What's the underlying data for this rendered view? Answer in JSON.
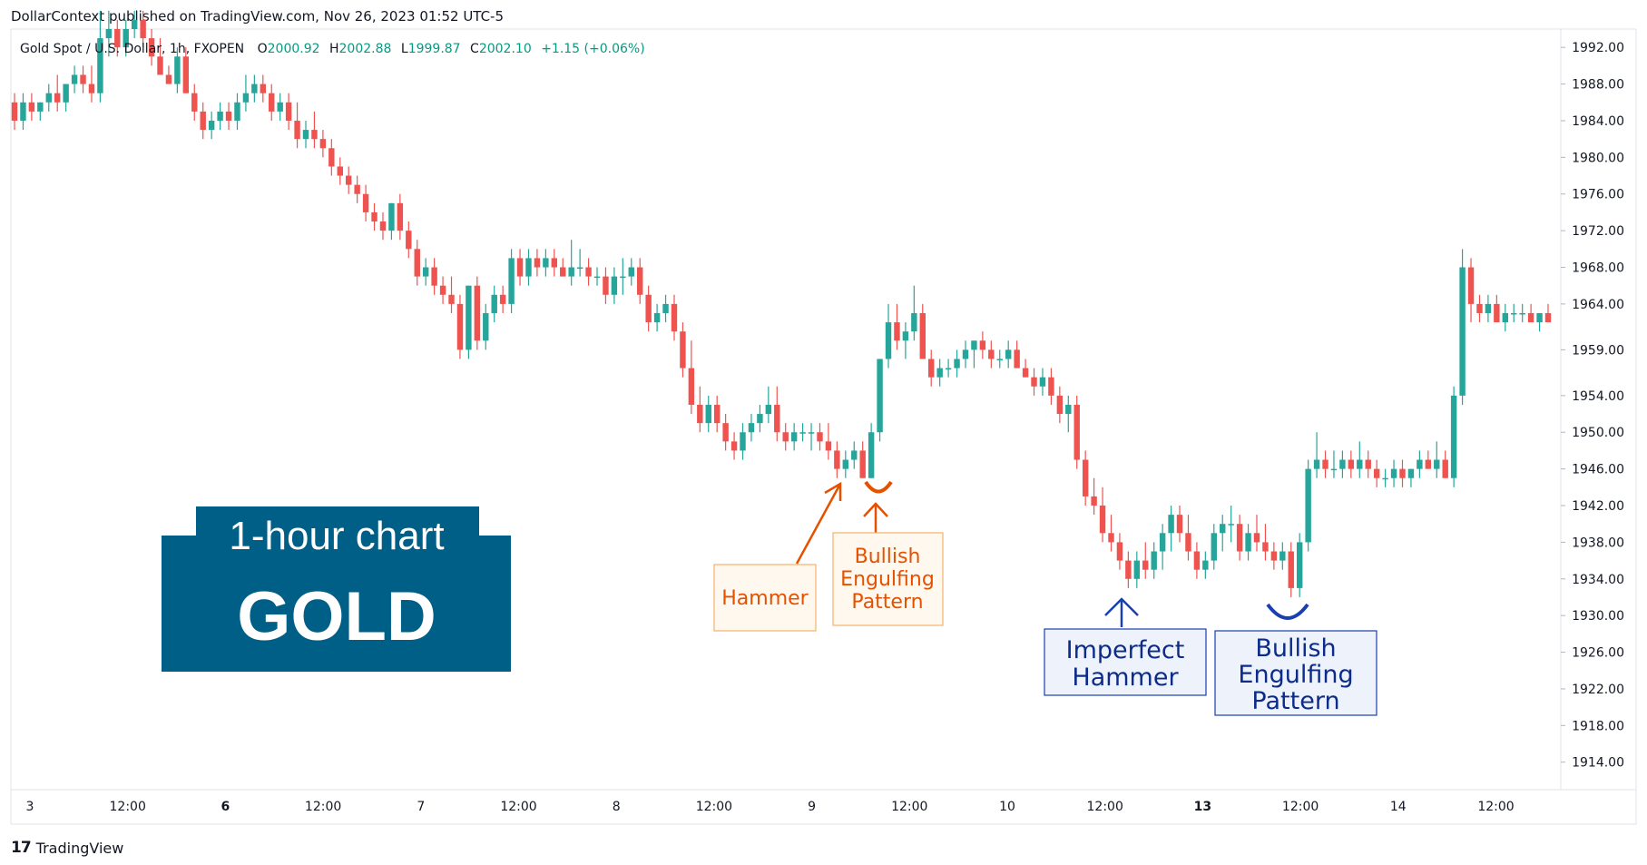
{
  "header": {
    "publisher": "DollarContext published on TradingView.com, Nov 26, 2023 01:52 UTC-5"
  },
  "legend": {
    "symbol": "Gold Spot / U.S. Dollar, 1h, FXOPEN",
    "o_label": "O",
    "o": "2000.92",
    "h_label": "H",
    "h": "2002.88",
    "l_label": "L",
    "l": "1999.87",
    "c_label": "C",
    "c": "2002.10",
    "change": "+1.15 (+0.06%)"
  },
  "badge": {
    "line1": "1-hour chart",
    "line2": "GOLD"
  },
  "footer": {
    "brand": "TradingView",
    "brand_mark": "17"
  },
  "colors": {
    "up": "#26a69a",
    "down": "#ef5350",
    "orange": "#e65100",
    "blue": "#0d47a1"
  },
  "annotations": {
    "hammer": "Hammer",
    "bull1": [
      "Bullish",
      "Engulfing",
      "Pattern"
    ],
    "imperfect": [
      "Imperfect",
      "Hammer"
    ],
    "bull2": [
      "Bullish",
      "Engulfing",
      "Pattern"
    ]
  },
  "chart_data": {
    "type": "candlestick",
    "title": "Gold Spot / U.S. Dollar, 1h, FXOPEN",
    "ylim": [
      1911,
      1994
    ],
    "y_ticks": [
      "1992.00",
      "1988.00",
      "1984.00",
      "1980.00",
      "1976.00",
      "1972.00",
      "1968.00",
      "1964.00",
      "1959.00",
      "1954.00",
      "1950.00",
      "1946.00",
      "1942.00",
      "1938.00",
      "1934.00",
      "1930.00",
      "1926.00",
      "1922.00",
      "1918.00",
      "1914.00"
    ],
    "x_ticks": [
      "3",
      "12:00",
      "6",
      "12:00",
      "7",
      "12:00",
      "8",
      "12:00",
      "9",
      "12:00",
      "10",
      "12:00",
      "13",
      "12:00",
      "14",
      "12:00"
    ],
    "x_ticks_bold": [
      false,
      false,
      true,
      false,
      false,
      false,
      false,
      false,
      false,
      false,
      false,
      false,
      true,
      false,
      false,
      false
    ],
    "candles": [
      [
        1986,
        1987,
        1983,
        1984
      ],
      [
        1984,
        1987,
        1983,
        1986
      ],
      [
        1986,
        1987,
        1984,
        1985
      ],
      [
        1985,
        1986,
        1984,
        1986
      ],
      [
        1986,
        1988,
        1985,
        1987
      ],
      [
        1987,
        1989,
        1985,
        1986
      ],
      [
        1986,
        1988,
        1985,
        1988
      ],
      [
        1988,
        1990,
        1987,
        1989
      ],
      [
        1989,
        1990,
        1987,
        1988
      ],
      [
        1988,
        1990,
        1986,
        1987
      ],
      [
        1987,
        1996,
        1986,
        1993
      ],
      [
        1993,
        1996,
        1991,
        1994
      ],
      [
        1994,
        1995,
        1991,
        1992
      ],
      [
        1992,
        1995,
        1991,
        1994
      ],
      [
        1994,
        1996,
        1993,
        1995
      ],
      [
        1995,
        1996,
        1992,
        1993
      ],
      [
        1993,
        1994,
        1990,
        1991
      ],
      [
        1991,
        1993,
        1989,
        1989
      ],
      [
        1989,
        1990,
        1988,
        1988
      ],
      [
        1988,
        1992,
        1987,
        1991
      ],
      [
        1991,
        1992,
        1987,
        1987
      ],
      [
        1987,
        1988,
        1984,
        1985
      ],
      [
        1985,
        1986,
        1982,
        1983
      ],
      [
        1983,
        1985,
        1982,
        1984
      ],
      [
        1984,
        1986,
        1983,
        1985
      ],
      [
        1985,
        1986,
        1983,
        1984
      ],
      [
        1984,
        1987,
        1983,
        1986
      ],
      [
        1986,
        1989,
        1985,
        1987
      ],
      [
        1987,
        1989,
        1986,
        1988
      ],
      [
        1988,
        1989,
        1986,
        1987
      ],
      [
        1987,
        1988,
        1984,
        1985
      ],
      [
        1985,
        1987,
        1984,
        1986
      ],
      [
        1986,
        1987,
        1983,
        1984
      ],
      [
        1984,
        1986,
        1981,
        1982
      ],
      [
        1982,
        1984,
        1981,
        1983
      ],
      [
        1983,
        1985,
        1981,
        1982
      ],
      [
        1982,
        1983,
        1980,
        1981
      ],
      [
        1981,
        1982,
        1978,
        1979
      ],
      [
        1979,
        1980,
        1977,
        1978
      ],
      [
        1978,
        1979,
        1976,
        1977
      ],
      [
        1977,
        1978,
        1975,
        1976
      ],
      [
        1976,
        1977,
        1973,
        1974
      ],
      [
        1974,
        1975,
        1972,
        1973
      ],
      [
        1973,
        1974,
        1971,
        1972
      ],
      [
        1972,
        1975,
        1971,
        1975
      ],
      [
        1975,
        1976,
        1971,
        1972
      ],
      [
        1972,
        1973,
        1969,
        1970
      ],
      [
        1970,
        1971,
        1966,
        1967
      ],
      [
        1967,
        1969,
        1966,
        1968
      ],
      [
        1968,
        1969,
        1965,
        1966
      ],
      [
        1966,
        1967,
        1964,
        1965
      ],
      [
        1965,
        1967,
        1963,
        1964
      ],
      [
        1964,
        1965,
        1958,
        1959
      ],
      [
        1959,
        1966,
        1958,
        1966
      ],
      [
        1966,
        1967,
        1959,
        1960
      ],
      [
        1960,
        1964,
        1959,
        1963
      ],
      [
        1963,
        1966,
        1962,
        1965
      ],
      [
        1965,
        1966,
        1963,
        1964
      ],
      [
        1964,
        1970,
        1963,
        1969
      ],
      [
        1969,
        1970,
        1966,
        1967
      ],
      [
        1967,
        1970,
        1966,
        1969
      ],
      [
        1969,
        1970,
        1967,
        1968
      ],
      [
        1968,
        1970,
        1967,
        1969
      ],
      [
        1969,
        1970,
        1967,
        1968
      ],
      [
        1968,
        1969,
        1967,
        1967
      ],
      [
        1967,
        1971,
        1966,
        1968
      ],
      [
        1968,
        1970,
        1967,
        1968
      ],
      [
        1968,
        1969,
        1966,
        1967
      ],
      [
        1967,
        1968,
        1966,
        1967
      ],
      [
        1967,
        1968,
        1964,
        1965
      ],
      [
        1965,
        1968,
        1964,
        1967
      ],
      [
        1967,
        1969,
        1965,
        1967
      ],
      [
        1967,
        1969,
        1966,
        1968
      ],
      [
        1968,
        1969,
        1964,
        1965
      ],
      [
        1965,
        1966,
        1961,
        1962
      ],
      [
        1962,
        1964,
        1961,
        1963
      ],
      [
        1963,
        1965,
        1962,
        1964
      ],
      [
        1964,
        1965,
        1960,
        1961
      ],
      [
        1961,
        1962,
        1956,
        1957
      ],
      [
        1957,
        1960,
        1952,
        1953
      ],
      [
        1953,
        1955,
        1950,
        1951
      ],
      [
        1951,
        1954,
        1950,
        1953
      ],
      [
        1953,
        1954,
        1950,
        1951
      ],
      [
        1951,
        1952,
        1948,
        1949
      ],
      [
        1949,
        1950,
        1947,
        1948
      ],
      [
        1948,
        1951,
        1947,
        1950
      ],
      [
        1950,
        1952,
        1949,
        1951
      ],
      [
        1951,
        1953,
        1950,
        1952
      ],
      [
        1952,
        1955,
        1951,
        1953
      ],
      [
        1953,
        1955,
        1949,
        1950
      ],
      [
        1950,
        1951,
        1948,
        1949
      ],
      [
        1949,
        1951,
        1948,
        1950
      ],
      [
        1950,
        1951,
        1949,
        1950
      ],
      [
        1950,
        1951,
        1948,
        1950
      ],
      [
        1950,
        1951,
        1948,
        1949
      ],
      [
        1949,
        1951,
        1947,
        1948
      ],
      [
        1948,
        1949,
        1945,
        1946
      ],
      [
        1946,
        1948,
        1945,
        1947
      ],
      [
        1947,
        1949,
        1946,
        1948
      ],
      [
        1948,
        1949,
        1945,
        1945
      ],
      [
        1945,
        1951,
        1945,
        1950
      ],
      [
        1950,
        1958,
        1949,
        1958
      ],
      [
        1958,
        1964,
        1957,
        1962
      ],
      [
        1962,
        1964,
        1959,
        1960
      ],
      [
        1960,
        1962,
        1958,
        1961
      ],
      [
        1961,
        1966,
        1960,
        1963
      ],
      [
        1963,
        1964,
        1958,
        1958
      ],
      [
        1958,
        1959,
        1955,
        1956
      ],
      [
        1956,
        1958,
        1955,
        1957
      ],
      [
        1957,
        1958,
        1956,
        1957
      ],
      [
        1957,
        1959,
        1956,
        1958
      ],
      [
        1958,
        1960,
        1957,
        1959
      ],
      [
        1959,
        1960,
        1957,
        1960
      ],
      [
        1960,
        1961,
        1958,
        1959
      ],
      [
        1959,
        1960,
        1957,
        1958
      ],
      [
        1958,
        1959,
        1957,
        1958
      ],
      [
        1958,
        1960,
        1957,
        1959
      ],
      [
        1959,
        1960,
        1957,
        1957
      ],
      [
        1957,
        1958,
        1956,
        1956
      ],
      [
        1956,
        1957,
        1954,
        1955
      ],
      [
        1955,
        1957,
        1954,
        1956
      ],
      [
        1956,
        1957,
        1953,
        1954
      ],
      [
        1954,
        1955,
        1951,
        1952
      ],
      [
        1952,
        1954,
        1950,
        1953
      ],
      [
        1953,
        1954,
        1946,
        1947
      ],
      [
        1947,
        1948,
        1942,
        1943
      ],
      [
        1943,
        1945,
        1941,
        1942
      ],
      [
        1942,
        1944,
        1938,
        1939
      ],
      [
        1939,
        1941,
        1937,
        1938
      ],
      [
        1938,
        1939,
        1935,
        1936
      ],
      [
        1936,
        1937,
        1933,
        1934
      ],
      [
        1934,
        1937,
        1933,
        1936
      ],
      [
        1936,
        1938,
        1934,
        1935
      ],
      [
        1935,
        1938,
        1934,
        1937
      ],
      [
        1937,
        1940,
        1935,
        1939
      ],
      [
        1939,
        1942,
        1937,
        1941
      ],
      [
        1941,
        1942,
        1938,
        1939
      ],
      [
        1939,
        1941,
        1936,
        1937
      ],
      [
        1937,
        1938,
        1934,
        1935
      ],
      [
        1935,
        1937,
        1934,
        1936
      ],
      [
        1936,
        1940,
        1935,
        1939
      ],
      [
        1939,
        1941,
        1937,
        1940
      ],
      [
        1940,
        1942,
        1938,
        1940
      ],
      [
        1940,
        1941,
        1936,
        1937
      ],
      [
        1937,
        1940,
        1936,
        1939
      ],
      [
        1939,
        1941,
        1937,
        1938
      ],
      [
        1938,
        1940,
        1936,
        1937
      ],
      [
        1937,
        1938,
        1935,
        1936
      ],
      [
        1936,
        1938,
        1935,
        1937
      ],
      [
        1937,
        1938,
        1932,
        1933
      ],
      [
        1933,
        1939,
        1932,
        1938
      ],
      [
        1938,
        1947,
        1937,
        1946
      ],
      [
        1946,
        1950,
        1945,
        1947
      ],
      [
        1947,
        1948,
        1945,
        1946
      ],
      [
        1946,
        1948,
        1945,
        1946
      ],
      [
        1946,
        1948,
        1945,
        1947
      ],
      [
        1947,
        1948,
        1945,
        1946
      ],
      [
        1946,
        1949,
        1945,
        1947
      ],
      [
        1947,
        1948,
        1945,
        1946
      ],
      [
        1946,
        1947,
        1944,
        1945
      ],
      [
        1945,
        1946,
        1944,
        1945
      ],
      [
        1945,
        1947,
        1944,
        1946
      ],
      [
        1946,
        1947,
        1944,
        1945
      ],
      [
        1945,
        1946,
        1944,
        1946
      ],
      [
        1946,
        1948,
        1945,
        1947
      ],
      [
        1947,
        1948,
        1946,
        1946
      ],
      [
        1946,
        1949,
        1945,
        1947
      ],
      [
        1947,
        1948,
        1945,
        1945
      ],
      [
        1945,
        1955,
        1944,
        1954
      ],
      [
        1954,
        1970,
        1953,
        1968
      ],
      [
        1968,
        1969,
        1962,
        1964
      ],
      [
        1964,
        1965,
        1962,
        1963
      ],
      [
        1963,
        1965,
        1962,
        1964
      ],
      [
        1964,
        1965,
        1962,
        1962
      ],
      [
        1962,
        1964,
        1961,
        1963
      ],
      [
        1963,
        1964,
        1962,
        1963
      ],
      [
        1963,
        1964,
        1962,
        1963
      ],
      [
        1963,
        1964,
        1962,
        1962
      ],
      [
        1962,
        1963,
        1961,
        1963
      ],
      [
        1963,
        1964,
        1962,
        1962
      ]
    ]
  }
}
